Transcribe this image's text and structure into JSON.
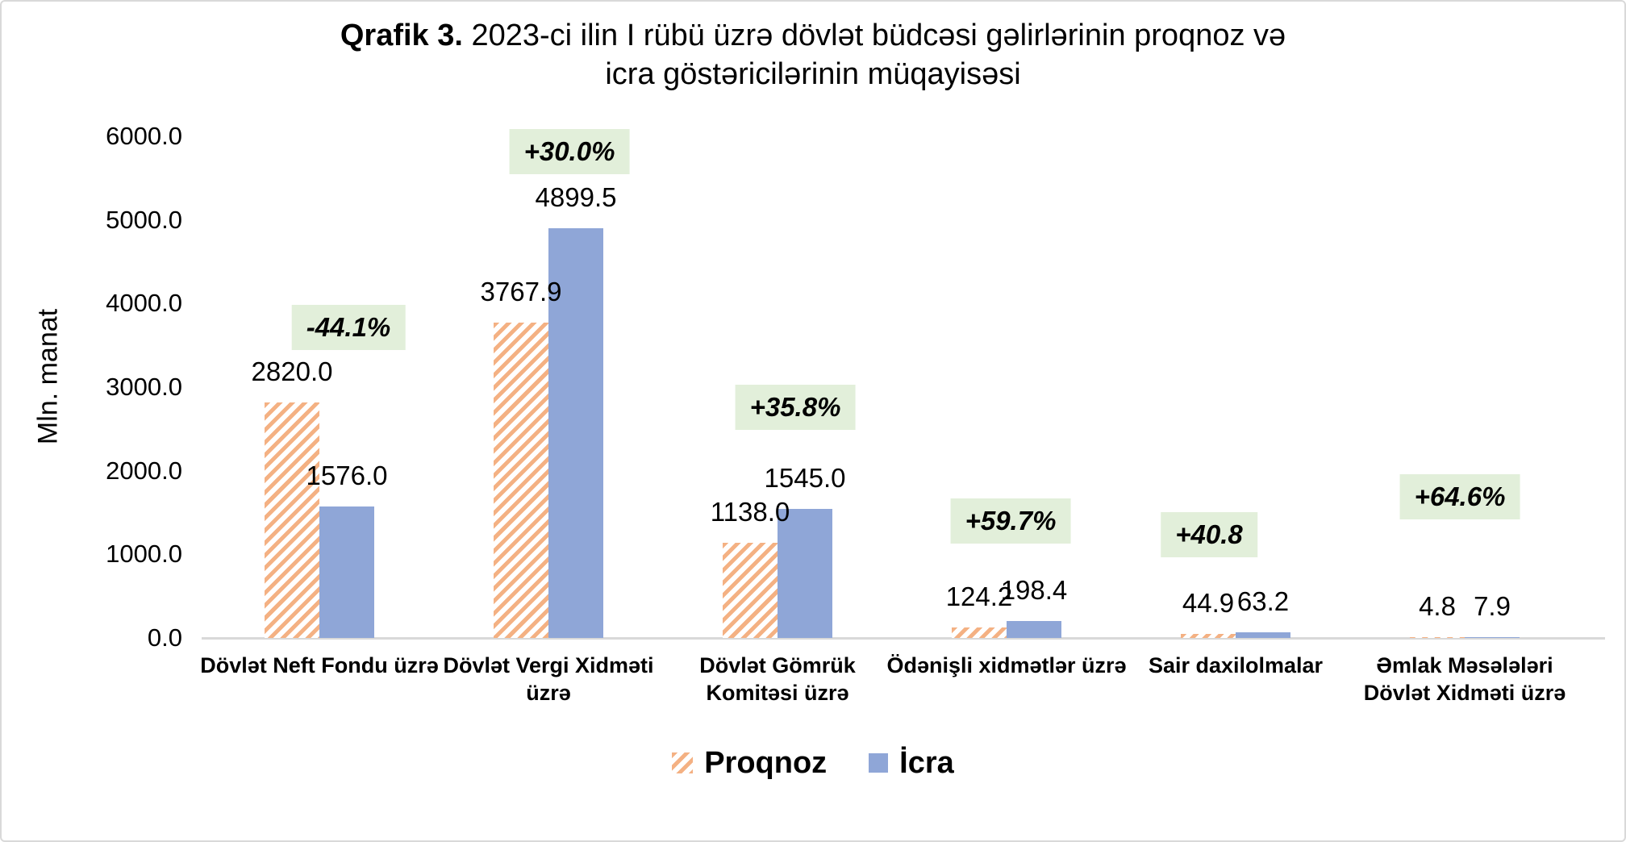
{
  "figure": {
    "title": {
      "prefix": "Qrafik 3.",
      "line1_rest": "2023-ci ilin I rübü  üzrə dövlət büdcəsi gəlirlərinin proqnoz və",
      "line2": "icra göstəricilərinin müqayisəsi"
    }
  },
  "chart_data": {
    "type": "bar",
    "title": "Qrafik 3. 2023-ci ilin I rübü üzrə dövlət büdcəsi gəlirlərinin proqnoz və icra göstəricilərinin müqayisəsi",
    "xlabel": "",
    "ylabel": "Mln. manat",
    "ylim": [
      0,
      6000
    ],
    "ytick_interval": 1000,
    "ytick_labels": [
      "0.0",
      "1000.0",
      "2000.0",
      "3000.0",
      "4000.0",
      "5000.0",
      "6000.0"
    ],
    "grid": false,
    "legend_position": "bottom",
    "categories": [
      "Dövlət Neft Fondu üzrə",
      "Dövlət Vergi Xidməti üzrə",
      "Dövlət Gömrük Komitəsi üzrə",
      "Ödənişli xidmətlər üzrə",
      "Sair daxilolmalar",
      "Əmlak Məsələləri Dövlət Xidməti üzrə"
    ],
    "series": [
      {
        "name": "Proqnoz",
        "style": "hatched-orange",
        "values": [
          2820.0,
          3767.9,
          1138.0,
          124.2,
          44.9,
          4.8
        ]
      },
      {
        "name": "İcra",
        "style": "solid-blue",
        "values": [
          1576.0,
          4899.5,
          1545.0,
          198.4,
          63.2,
          7.9
        ]
      }
    ],
    "change_badges": [
      "-44.1%",
      "+30.0%",
      "+35.8%",
      "+59.7%",
      "+40.8",
      "+64.6%"
    ],
    "colors": {
      "proqnoz_hatch": "#F4B183",
      "icra_fill": "#8FA6D7",
      "badge_background": "#E2EFDA",
      "badge_text": "#000000",
      "axis_line": "#D9D9D9",
      "text": "#000000"
    }
  },
  "legend": {
    "items": [
      {
        "label": "Proqnoz",
        "swatch": "hatched-orange-swatch"
      },
      {
        "label": "İcra",
        "swatch": "solid-blue-swatch"
      }
    ]
  }
}
